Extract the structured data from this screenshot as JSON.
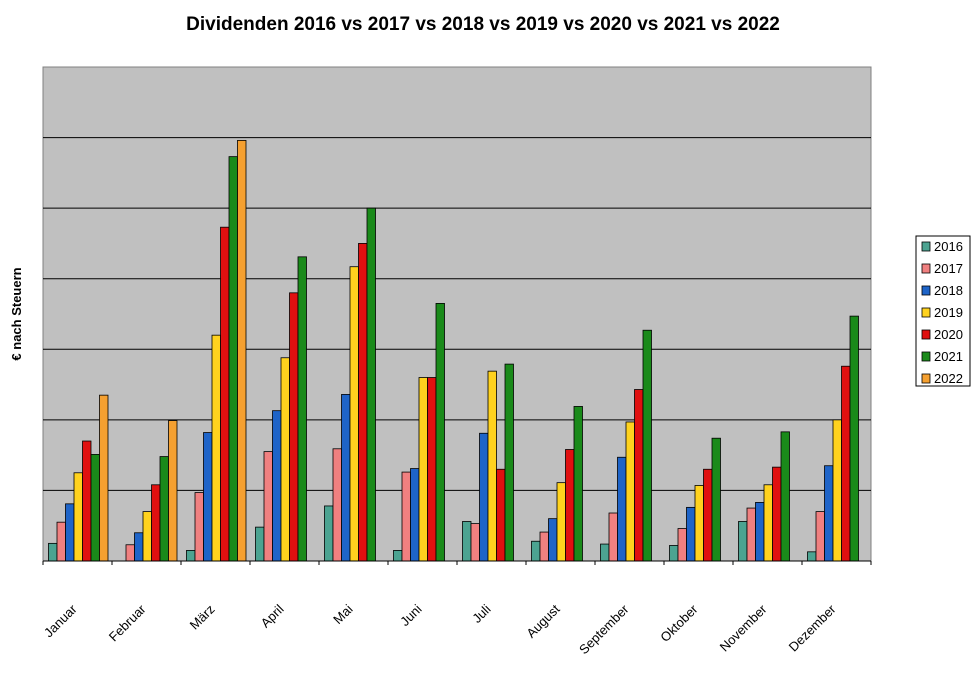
{
  "chart_data": {
    "type": "bar",
    "title": "Dividenden 2016 vs 2017 vs 2018 vs 2019 vs 2020 vs 2021 vs 2022",
    "xlabel": "",
    "ylabel": "€ nach Steuern",
    "ylim": [
      0,
      7
    ],
    "grid": true,
    "legend_position": "right",
    "plot_background": "#c0c0c0",
    "categories": [
      "Januar",
      "Februar",
      "März",
      "April",
      "Mai",
      "Juni",
      "Juli",
      "August",
      "September",
      "Oktober",
      "November",
      "Dezember"
    ],
    "series": [
      {
        "name": "2016",
        "color": "#4ca391",
        "values": [
          0.25,
          0,
          0.15,
          0.48,
          0.78,
          0.15,
          0.56,
          0.28,
          0.24,
          0.22,
          0.56,
          0.13
        ]
      },
      {
        "name": "2017",
        "color": "#f08080",
        "values": [
          0.55,
          0.23,
          0.97,
          1.55,
          1.59,
          1.26,
          0.53,
          0.41,
          0.68,
          0.46,
          0.75,
          0.7
        ]
      },
      {
        "name": "2018",
        "color": "#1e64c8",
        "values": [
          0.81,
          0.4,
          1.82,
          2.13,
          2.36,
          1.31,
          1.81,
          0.6,
          1.47,
          0.76,
          0.83,
          1.35
        ]
      },
      {
        "name": "2019",
        "color": "#ffd21e",
        "values": [
          1.25,
          0.7,
          3.2,
          2.88,
          4.17,
          2.6,
          2.69,
          1.11,
          1.97,
          1.07,
          1.08,
          2.0
        ]
      },
      {
        "name": "2020",
        "color": "#e01010",
        "values": [
          1.7,
          1.08,
          4.73,
          3.8,
          4.5,
          2.6,
          1.3,
          1.58,
          2.43,
          1.3,
          1.33,
          2.76
        ]
      },
      {
        "name": "2021",
        "color": "#1a8a1a",
        "values": [
          1.51,
          1.48,
          5.73,
          4.31,
          5.0,
          3.65,
          2.79,
          2.19,
          3.27,
          1.74,
          1.83,
          3.47
        ]
      },
      {
        "name": "2022",
        "color": "#f5a030",
        "values": [
          2.35,
          1.99,
          5.96,
          null,
          null,
          null,
          null,
          null,
          null,
          null,
          null,
          null
        ]
      }
    ]
  }
}
